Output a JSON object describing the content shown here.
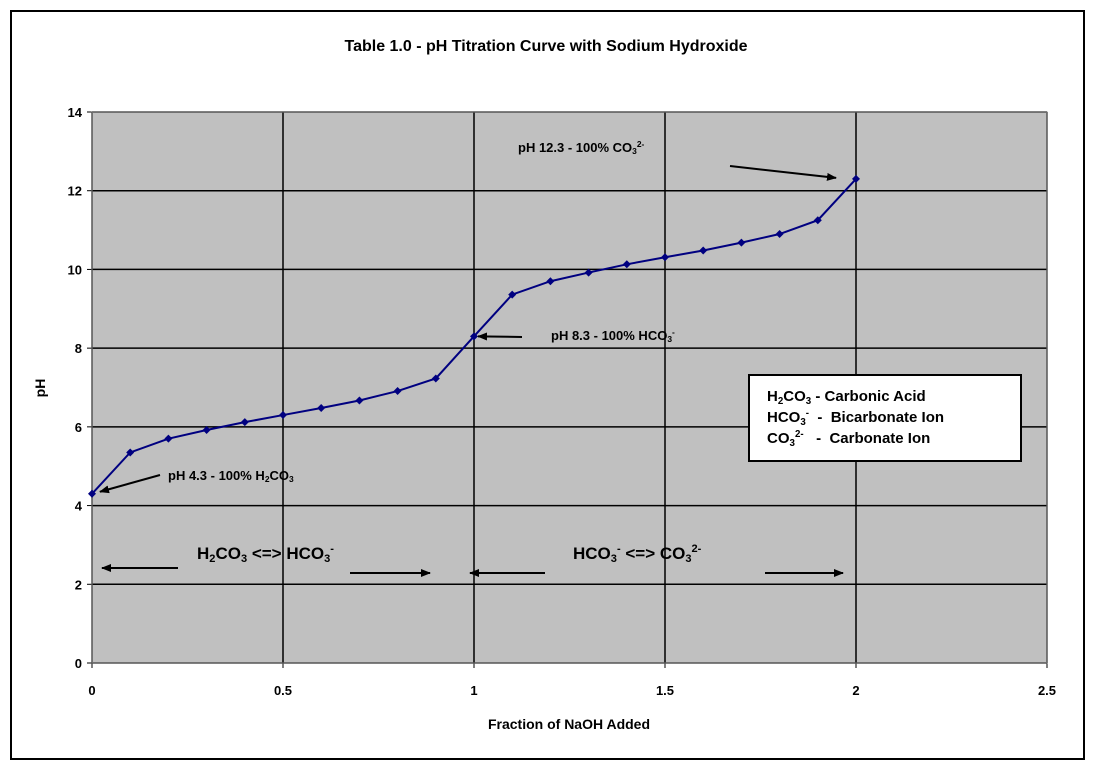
{
  "chart_data": {
    "type": "line",
    "title": "Table 1.0 - pH Titration Curve with Sodium Hydroxide",
    "xlabel": "Fraction of NaOH Added",
    "ylabel": "pH",
    "xlim": [
      0,
      2.5
    ],
    "ylim": [
      0,
      14
    ],
    "xticks": [
      "0",
      "0.5",
      "1",
      "1.5",
      "2",
      "2.5"
    ],
    "yticks": [
      "0",
      "2",
      "4",
      "6",
      "8",
      "10",
      "12",
      "14"
    ],
    "grid": true,
    "plot_background": "#c0c0c0",
    "series_color": "#000080",
    "x": [
      0,
      0.1,
      0.2,
      0.3,
      0.4,
      0.5,
      0.6,
      0.7,
      0.8,
      0.9,
      1.0,
      1.1,
      1.2,
      1.3,
      1.4,
      1.5,
      1.6,
      1.7,
      1.8,
      1.9,
      2.0
    ],
    "y": [
      4.3,
      5.35,
      5.7,
      5.92,
      6.12,
      6.3,
      6.48,
      6.67,
      6.91,
      7.23,
      8.3,
      9.36,
      9.7,
      9.92,
      10.13,
      10.31,
      10.48,
      10.68,
      10.9,
      11.25,
      12.3
    ],
    "annotations": [
      {
        "segments": [
          {
            "t": "pH 4.3 - 100% H"
          },
          {
            "t": "2",
            "s": "sub"
          },
          {
            "t": "CO"
          },
          {
            "t": "3",
            "s": "sub"
          }
        ],
        "points_to": [
          0,
          4.3
        ]
      },
      {
        "segments": [
          {
            "t": "pH 8.3 - 100% HCO"
          },
          {
            "t": "3",
            "s": "sub"
          },
          {
            "t": "-",
            "s": "sup"
          }
        ],
        "points_to": [
          1.0,
          8.3
        ]
      },
      {
        "segments": [
          {
            "t": "pH 12.3 - 100% CO"
          },
          {
            "t": "3",
            "s": "sub"
          },
          {
            "t": "2-",
            "s": "sup"
          }
        ],
        "points_to": [
          2.0,
          12.3
        ]
      }
    ],
    "region_labels": [
      {
        "segments": [
          {
            "t": "H"
          },
          {
            "t": "2",
            "s": "sub"
          },
          {
            "t": "CO"
          },
          {
            "t": "3",
            "s": "sub"
          },
          {
            "t": " <=> HCO"
          },
          {
            "t": "3",
            "s": "sub"
          },
          {
            "t": "-",
            "s": "sup"
          }
        ],
        "range": [
          0,
          1
        ]
      },
      {
        "segments": [
          {
            "t": "HCO"
          },
          {
            "t": "3",
            "s": "sub"
          },
          {
            "t": "-",
            "s": "sup"
          },
          {
            "t": "  <=>  CO"
          },
          {
            "t": "3",
            "s": "sub"
          },
          {
            "t": "2-",
            "s": "sup"
          }
        ],
        "range": [
          1,
          2
        ]
      }
    ],
    "legend": [
      [
        {
          "t": "H"
        },
        {
          "t": "2",
          "s": "sub"
        },
        {
          "t": "CO"
        },
        {
          "t": "3",
          "s": "sub"
        },
        {
          "t": " - Carbonic Acid"
        }
      ],
      [
        {
          "t": "HCO"
        },
        {
          "t": "3",
          "s": "sub"
        },
        {
          "t": "-",
          "s": "sup"
        },
        {
          "t": "  -  Bicarbonate Ion"
        }
      ],
      [
        {
          "t": "CO"
        },
        {
          "t": "3",
          "s": "sub"
        },
        {
          "t": "2-",
          "s": "sup"
        },
        {
          "t": "   -  Carbonate Ion"
        }
      ]
    ]
  }
}
